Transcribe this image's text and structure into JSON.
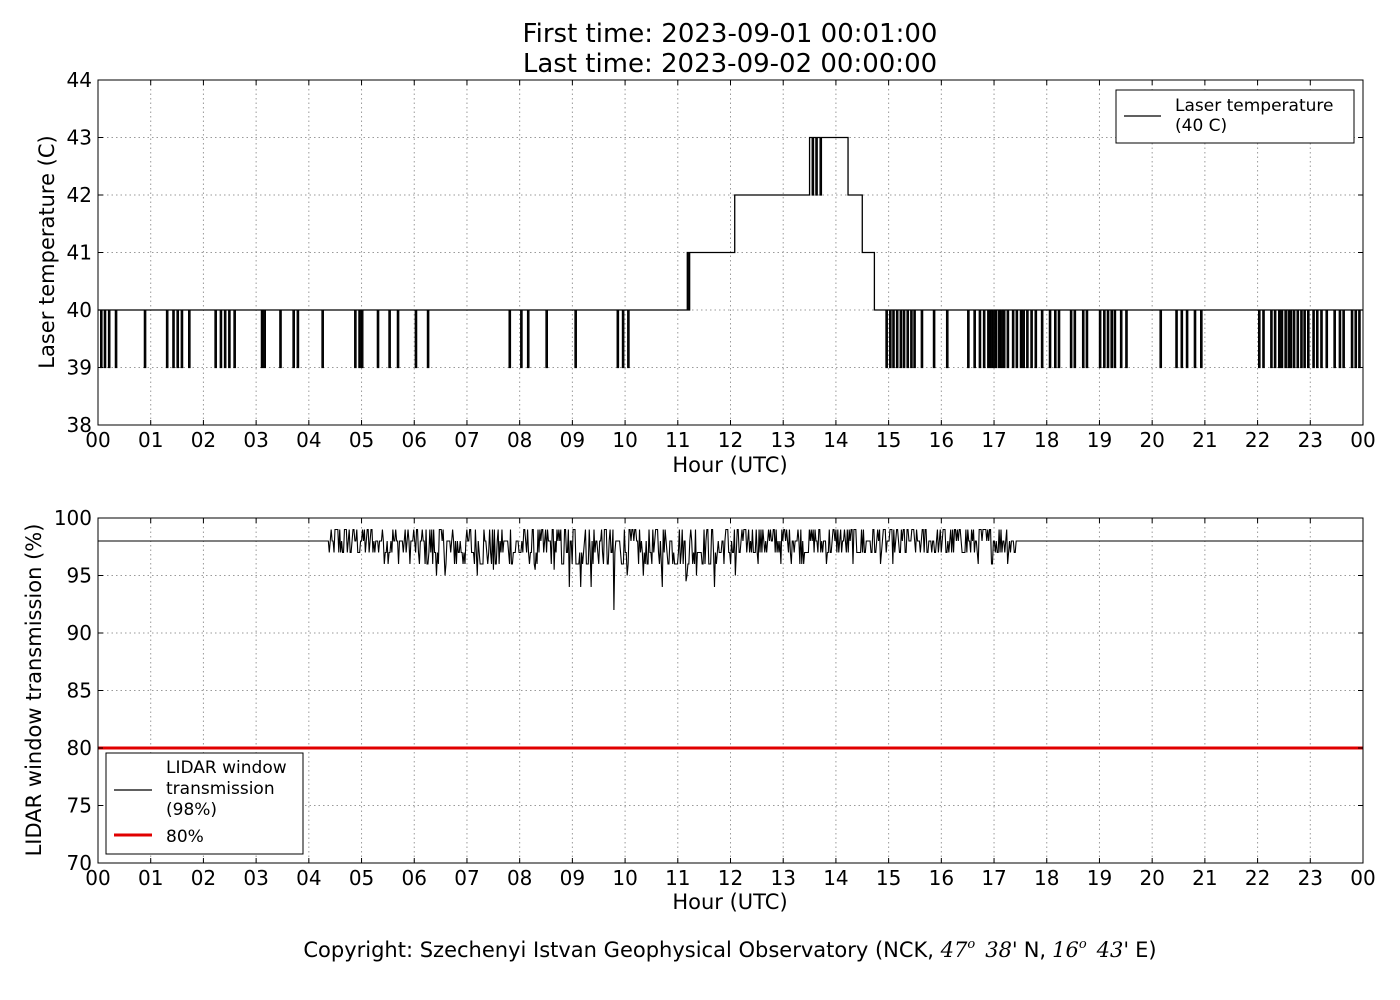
{
  "title": {
    "line1": "First time: 2023-09-01 00:01:00",
    "line2": "Last time: 2023-09-02 00:00:00"
  },
  "footer": {
    "prefix": "Copyright: Szechenyi Istvan Geophysical Observatory (NCK, ",
    "lat_deg": "47",
    "lat_min": "38'",
    "lat_dir": "N,",
    "lon_deg": "16",
    "lon_min": "43'",
    "lon_dir": "E)",
    "deg_symbol": "o"
  },
  "colors": {
    "series": "#000000",
    "threshold": "#e00000",
    "grid": "#9a9a9a"
  },
  "chart_data": [
    {
      "type": "line",
      "xlabel": "Hour (UTC)",
      "ylabel": "Laser temperature (C)",
      "xlim": [
        0,
        24
      ],
      "ylim": [
        38,
        44
      ],
      "grid": true,
      "x_ticks": [
        "00",
        "01",
        "02",
        "03",
        "04",
        "05",
        "06",
        "07",
        "08",
        "09",
        "10",
        "11",
        "12",
        "13",
        "14",
        "15",
        "16",
        "17",
        "18",
        "19",
        "20",
        "21",
        "22",
        "23",
        "00"
      ],
      "y_ticks": [
        "38",
        "39",
        "40",
        "41",
        "42",
        "43",
        "44"
      ],
      "legend_position": "top-right",
      "series": [
        {
          "name": "Laser temperature\n(40 C)",
          "base_segments": [
            {
              "from": 0.0,
              "to": 11.18,
              "value": 40
            },
            {
              "from": 11.18,
              "to": 12.08,
              "value": 41
            },
            {
              "from": 12.08,
              "to": 13.5,
              "value": 42
            },
            {
              "from": 13.5,
              "to": 14.23,
              "value": 43
            },
            {
              "from": 14.23,
              "to": 14.5,
              "value": 42
            },
            {
              "from": 14.5,
              "to": 14.73,
              "value": 41
            },
            {
              "from": 14.73,
              "to": 24.0,
              "value": 40
            }
          ],
          "spikes": [
            {
              "value": 39,
              "times": [
                0.05,
                0.12,
                0.2,
                0.33,
                0.88,
                1.3,
                1.42,
                1.5,
                1.58,
                1.72,
                2.22,
                2.32,
                2.4,
                2.48,
                2.58,
                3.1,
                3.15,
                3.45,
                3.7,
                3.78,
                4.25,
                4.87,
                4.95,
                5.0,
                5.3,
                5.52,
                5.68,
                6.02,
                6.25,
                7.8,
                8.02,
                8.15,
                8.5,
                9.05,
                9.85,
                9.95,
                10.05,
                14.95,
                15.02,
                15.08,
                15.15,
                15.22,
                15.28,
                15.35,
                15.42,
                15.48,
                15.62,
                15.85,
                16.1,
                16.5,
                16.62,
                16.72,
                16.8,
                16.88,
                16.92,
                16.97,
                17.02,
                17.08,
                17.13,
                17.18,
                17.25,
                17.35,
                17.42,
                17.5,
                17.55,
                17.62,
                17.7,
                17.78,
                17.9,
                18.05,
                18.15,
                18.22,
                18.45,
                18.52,
                18.68,
                18.75,
                19.0,
                19.08,
                19.15,
                19.22,
                19.28,
                19.4,
                19.5,
                20.15,
                20.45,
                20.55,
                20.65,
                20.8,
                20.92,
                22.02,
                22.1,
                22.25,
                22.32,
                22.4,
                22.45,
                22.52,
                22.58,
                22.62,
                22.68,
                22.75,
                22.82,
                22.88,
                22.95,
                23.05,
                23.12,
                23.2,
                23.3,
                23.45,
                23.55,
                23.62,
                23.78,
                23.85,
                23.92
              ]
            },
            {
              "value": 40,
              "times": [
                11.15,
                11.2
              ]
            },
            {
              "value": 42,
              "times": [
                13.55,
                13.62,
                13.7
              ]
            }
          ]
        }
      ]
    },
    {
      "type": "line",
      "xlabel": "Hour (UTC)",
      "ylabel": "LIDAR window transmission (%)",
      "xlim": [
        0,
        24
      ],
      "ylim": [
        70,
        100
      ],
      "grid": true,
      "x_ticks": [
        "00",
        "01",
        "02",
        "03",
        "04",
        "05",
        "06",
        "07",
        "08",
        "09",
        "10",
        "11",
        "12",
        "13",
        "14",
        "15",
        "16",
        "17",
        "18",
        "19",
        "20",
        "21",
        "22",
        "23",
        "00"
      ],
      "y_ticks": [
        "70",
        "75",
        "80",
        "85",
        "90",
        "95",
        "100"
      ],
      "legend_position": "lower-left",
      "series": [
        {
          "name": "LIDAR window\ntransmission\n(98%)",
          "baseline": 98,
          "noisy_from": 4.37,
          "noisy_to": 17.42,
          "dips": [
            [
              8.95,
              94
            ],
            [
              9.15,
              94
            ],
            [
              9.35,
              94
            ],
            [
              9.78,
              92
            ],
            [
              10.35,
              95
            ],
            [
              10.7,
              94
            ],
            [
              11.15,
              94.5
            ],
            [
              11.7,
              94
            ],
            [
              12.1,
              95
            ],
            [
              7.5,
              95.5
            ],
            [
              8.3,
              95.5
            ],
            [
              6.45,
              96
            ],
            [
              8.65,
              95.5
            ]
          ]
        },
        {
          "name": "80%",
          "constant": 80
        }
      ]
    }
  ]
}
